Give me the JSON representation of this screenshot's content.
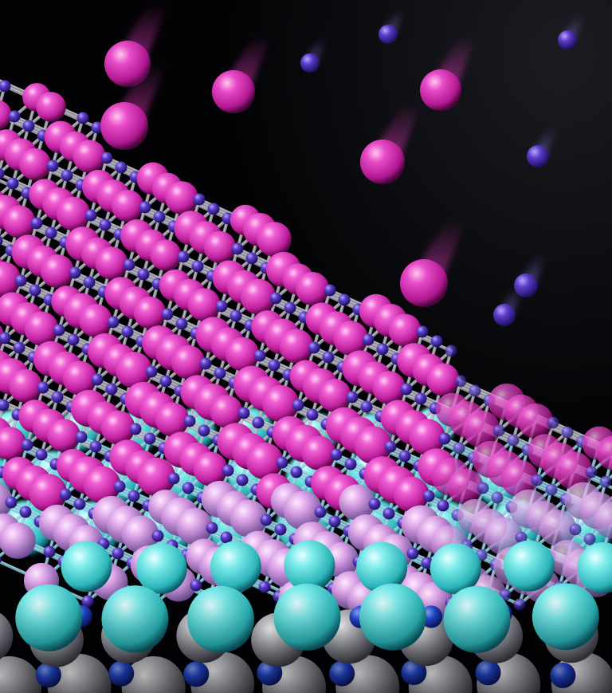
{
  "illustration": {
    "subject": "crystal-lattice-deposition",
    "colors": {
      "background": "#030305",
      "magenta_atom": "#e83cc4",
      "violet_atom": "#4a2fa6",
      "cyan_atom": "#52dcd8",
      "substrate_grey": "#9a9aa2",
      "substrate_blue": "#1f3fc8",
      "bond": "#a9a9b2"
    }
  }
}
